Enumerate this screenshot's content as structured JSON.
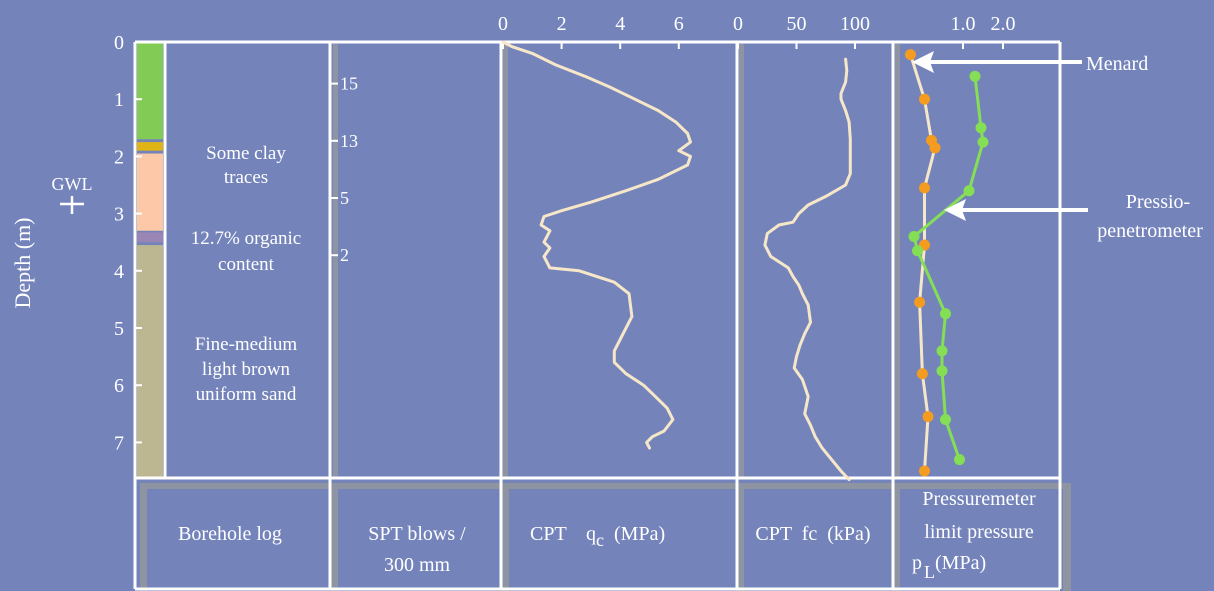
{
  "colors": {
    "background": "#7484bb",
    "panel_shadow": "#8f94a2",
    "cpt_line": "#f7e7c9",
    "menard_point": "#f39c1f",
    "pressio_series": "#84df54",
    "layer_green": "#82cc56",
    "layer_yellow": "#e0b414",
    "layer_peach": "#fcc8a8",
    "layer_purple": "#9a86b4",
    "layer_khaki": "#bcb790"
  },
  "depth_axis": {
    "label": "Depth (m)",
    "ticks": [
      "0",
      "1",
      "2",
      "3",
      "4",
      "5",
      "6",
      "7"
    ]
  },
  "gwl_label": "GWL",
  "borehole": {
    "title": "Borehole log",
    "annotations": [
      {
        "lines": [
          "Some clay",
          "traces"
        ]
      },
      {
        "lines": [
          "12.7% organic",
          "content"
        ]
      },
      {
        "lines": [
          "Fine-medium",
          "light brown",
          "uniform sand"
        ]
      }
    ]
  },
  "spt": {
    "title_lines": [
      "SPT blows /",
      "300 mm"
    ]
  },
  "cpt_qc": {
    "title": "CPT",
    "q": "q",
    "sub": "c",
    "unit": "(MPa)",
    "ticks": [
      "0",
      "2",
      "4",
      "6"
    ]
  },
  "cpt_fc": {
    "title": "CPT  fc  (kPa)",
    "ticks": [
      "0",
      "50",
      "100"
    ]
  },
  "pressuremeter": {
    "title_lines": [
      "Pressuremeter",
      "limit pressure"
    ],
    "p": "p",
    "sub": "L",
    "unit": "(MPa)",
    "ticks": [
      "1.0",
      "2.0"
    ],
    "label_menard": "Menard",
    "label_pressio_lines": [
      "Pressio-",
      "penetrometer"
    ]
  },
  "chart_data": [
    {
      "type": "bar",
      "subtype": "borehole-log",
      "layers": [
        {
          "top": 0.0,
          "bottom": 1.7,
          "color": "#82cc56"
        },
        {
          "top": 1.75,
          "bottom": 1.9,
          "color": "#e0b414"
        },
        {
          "top": 1.95,
          "bottom": 3.3,
          "color": "#fcc8a8"
        },
        {
          "top": 3.33,
          "bottom": 3.5,
          "color": "#9a86b4"
        },
        {
          "top": 3.55,
          "bottom": 7.6,
          "color": "#bcb790"
        }
      ],
      "ylabel": "Depth (m)",
      "ylim": [
        0,
        7.65
      ]
    },
    {
      "type": "scatter",
      "subtype": "spt",
      "points": [
        {
          "depth": 0.5,
          "value": "15"
        },
        {
          "depth": 1.5,
          "value": "13"
        },
        {
          "depth": 2.5,
          "value": "5"
        },
        {
          "depth": 3.5,
          "value": "2"
        }
      ],
      "ylim": [
        0,
        7.65
      ]
    },
    {
      "type": "line",
      "subtype": "cpt-qc",
      "xlabel": "CPT qc (MPa)",
      "xlim": [
        0,
        8.3
      ],
      "ylim": [
        0,
        7.65
      ],
      "points": [
        [
          0,
          0
        ],
        [
          0.3,
          0.08
        ],
        [
          1.0,
          0.2
        ],
        [
          1.8,
          0.4
        ],
        [
          2.8,
          0.6
        ],
        [
          3.7,
          0.8
        ],
        [
          4.5,
          1.0
        ],
        [
          5.3,
          1.2
        ],
        [
          5.9,
          1.4
        ],
        [
          6.3,
          1.6
        ],
        [
          6.4,
          1.75
        ],
        [
          6.0,
          1.9
        ],
        [
          6.4,
          2.0
        ],
        [
          6.3,
          2.15
        ],
        [
          5.3,
          2.4
        ],
        [
          4.2,
          2.6
        ],
        [
          3.0,
          2.8
        ],
        [
          2.0,
          2.95
        ],
        [
          1.4,
          3.05
        ],
        [
          1.3,
          3.2
        ],
        [
          1.6,
          3.3
        ],
        [
          1.4,
          3.5
        ],
        [
          1.6,
          3.6
        ],
        [
          1.4,
          3.75
        ],
        [
          1.6,
          3.95
        ],
        [
          2.6,
          4.0
        ],
        [
          3.8,
          4.2
        ],
        [
          4.3,
          4.4
        ],
        [
          4.4,
          4.8
        ],
        [
          4.1,
          5.1
        ],
        [
          3.8,
          5.4
        ],
        [
          3.8,
          5.6
        ],
        [
          4.2,
          5.8
        ],
        [
          4.8,
          6.0
        ],
        [
          5.2,
          6.2
        ],
        [
          5.6,
          6.4
        ],
        [
          5.8,
          6.6
        ],
        [
          5.5,
          6.8
        ],
        [
          5.1,
          6.9
        ],
        [
          4.9,
          7.0
        ],
        [
          5.0,
          7.1
        ]
      ]
    },
    {
      "type": "line",
      "subtype": "cpt-fc",
      "xlabel": "CPT fc (kPa)",
      "xlim": [
        0,
        135
      ],
      "ylim": [
        0,
        7.65
      ],
      "points": [
        [
          92,
          0.3
        ],
        [
          93,
          0.5
        ],
        [
          92,
          0.7
        ],
        [
          88,
          0.9
        ],
        [
          88,
          1.0
        ],
        [
          92,
          1.2
        ],
        [
          95,
          1.4
        ],
        [
          96,
          1.7
        ],
        [
          96,
          2.0
        ],
        [
          96,
          2.3
        ],
        [
          92,
          2.5
        ],
        [
          75,
          2.7
        ],
        [
          60,
          2.85
        ],
        [
          52,
          3.0
        ],
        [
          47,
          3.15
        ],
        [
          35,
          3.2
        ],
        [
          25,
          3.35
        ],
        [
          23,
          3.55
        ],
        [
          28,
          3.75
        ],
        [
          43,
          3.95
        ],
        [
          47,
          4.1
        ],
        [
          52,
          4.25
        ],
        [
          55,
          4.4
        ],
        [
          60,
          4.6
        ],
        [
          62,
          4.9
        ],
        [
          57,
          5.1
        ],
        [
          53,
          5.3
        ],
        [
          50,
          5.5
        ],
        [
          48,
          5.7
        ],
        [
          55,
          5.9
        ],
        [
          60,
          6.2
        ],
        [
          57,
          6.5
        ],
        [
          62,
          6.7
        ],
        [
          66,
          6.9
        ],
        [
          72,
          7.1
        ],
        [
          80,
          7.3
        ],
        [
          88,
          7.5
        ],
        [
          95,
          7.65
        ]
      ]
    },
    {
      "type": "scatter",
      "subtype": "pressuremeter",
      "xlabel": "Pressuremeter limit pressure pL (MPa)",
      "ylim": [
        0,
        7.65
      ],
      "series": [
        {
          "name": "Menard",
          "points": [
            [
              0.25,
              0.22
            ],
            [
              0.45,
              1.0
            ],
            [
              0.55,
              1.72
            ],
            [
              0.6,
              1.85
            ],
            [
              0.45,
              2.55
            ],
            [
              0.45,
              3.55
            ],
            [
              0.38,
              4.55
            ],
            [
              0.42,
              5.8
            ],
            [
              0.5,
              6.55
            ],
            [
              0.45,
              7.5
            ]
          ]
        },
        {
          "name": "Pressio- penetrometer",
          "points": [
            [
              1.3,
              0.6
            ],
            [
              1.45,
              1.5
            ],
            [
              1.5,
              1.75
            ],
            [
              1.15,
              2.6
            ],
            [
              0.3,
              3.4
            ],
            [
              0.35,
              3.65
            ],
            [
              0.75,
              4.75
            ],
            [
              0.7,
              5.4
            ],
            [
              0.7,
              5.75
            ],
            [
              0.75,
              6.6
            ],
            [
              0.95,
              7.3
            ]
          ]
        }
      ]
    }
  ]
}
